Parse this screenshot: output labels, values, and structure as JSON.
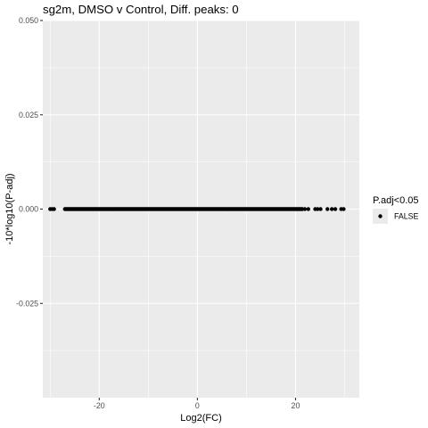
{
  "chart_data": {
    "type": "scatter",
    "title": "sg2m, DMSO v Control, Diff. peaks: 0",
    "xlabel": "Log2(FC)",
    "ylabel": "-10*log10(P-adj)",
    "xlim": [
      -31.5,
      33
    ],
    "ylim": [
      -0.05,
      0.05
    ],
    "x_ticks": [
      -20,
      0,
      20
    ],
    "x_tick_labels": [
      "-20",
      "0",
      "20"
    ],
    "y_ticks": [
      -0.025,
      0,
      0.025,
      0.05
    ],
    "y_tick_labels": [
      "-0.025",
      "0.000",
      "0.025",
      "0.050"
    ],
    "x_minor": [
      -30,
      -10,
      10,
      30
    ],
    "y_minor": [
      -0.0375,
      -0.0125,
      0.0125,
      0.0375
    ],
    "grid": true,
    "legend": {
      "title": "P.adj<0.05",
      "entries": [
        {
          "label": "FALSE",
          "color": "#000000"
        }
      ],
      "position": "right"
    },
    "series": [
      {
        "name": "FALSE",
        "color": "#000000",
        "dense_range": [
          -27,
          21.5
        ],
        "y": 0,
        "points": [
          {
            "x": -30,
            "y": 0
          },
          {
            "x": -29.6,
            "y": 0
          },
          {
            "x": -29.2,
            "y": 0
          },
          {
            "x": 21.9,
            "y": 0
          },
          {
            "x": 22.6,
            "y": 0
          },
          {
            "x": 24,
            "y": 0
          },
          {
            "x": 24.5,
            "y": 0
          },
          {
            "x": 25.1,
            "y": 0
          },
          {
            "x": 26.5,
            "y": 0
          },
          {
            "x": 27.4,
            "y": 0
          },
          {
            "x": 28.1,
            "y": 0
          },
          {
            "x": 29.3,
            "y": 0
          },
          {
            "x": 29.8,
            "y": 0
          }
        ]
      }
    ]
  }
}
